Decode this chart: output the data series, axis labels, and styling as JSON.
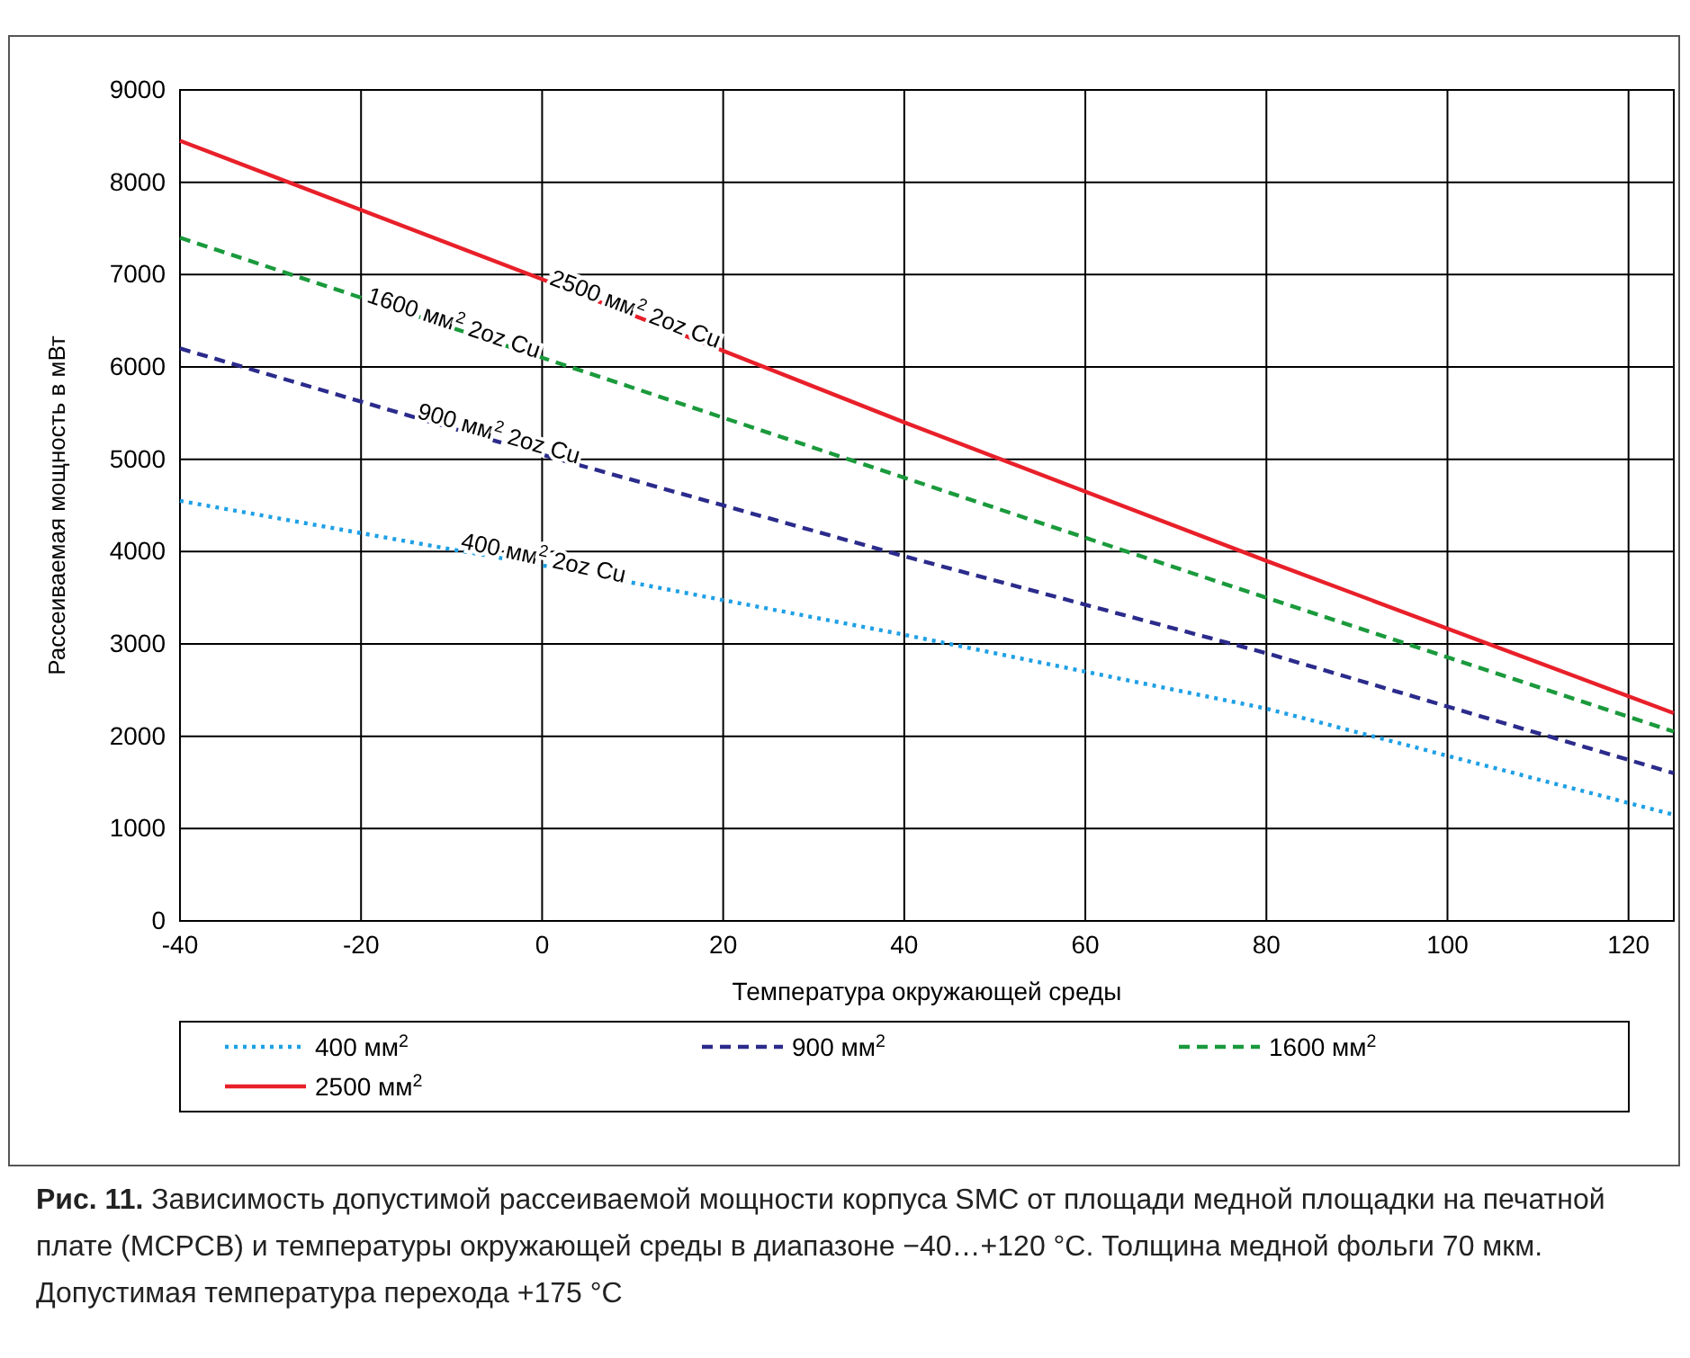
{
  "chart_data": {
    "type": "line",
    "xlabel": "Температура окружающей среды",
    "ylabel": "Рассеиваемая мощность в мВт",
    "x": [
      -40,
      0,
      40,
      80,
      125
    ],
    "series": [
      {
        "name": "400 мм$^{2}$",
        "color": "#1ea0e6",
        "values": [
          4550,
          3850,
          3100,
          2300,
          1150
        ],
        "line_style": "dotted"
      },
      {
        "name": "900 мм$^{2}$",
        "color": "#2b2b8c",
        "values": [
          6200,
          5050,
          3950,
          2900,
          1600
        ],
        "line_style": "dashed"
      },
      {
        "name": "1600 мм$^{2}$",
        "color": "#1a9a3c",
        "values": [
          7400,
          6100,
          4800,
          3500,
          2050
        ],
        "line_style": "dashed"
      },
      {
        "name": "2500 мм$^{2}$",
        "color": "#e8202a",
        "values": [
          8450,
          6950,
          5400,
          3900,
          2250
        ],
        "line_style": "solid"
      }
    ],
    "xlim": [
      -40,
      125
    ],
    "xticks": [
      -40,
      -20,
      0,
      20,
      40,
      60,
      80,
      100,
      120
    ],
    "ylim": [
      0,
      9000
    ],
    "yticks": [
      0,
      1000,
      2000,
      3000,
      4000,
      5000,
      6000,
      7000,
      8000,
      9000
    ],
    "grid": true,
    "legend": "bottom",
    "marker": "none",
    "annotations": [
      {
        "text": "400 мм$^{2}$ 2oz Cu",
        "x": 0,
        "y": 3850
      },
      {
        "text": "900 мм$^{2}$ 2oz Cu",
        "x": -5,
        "y": 5200
      },
      {
        "text": "1600 мм$^{2}$ 2oz Cu",
        "x": -10,
        "y": 6400
      },
      {
        "text": "2500 мм$^{2}$ 2oz Cu",
        "x": 10,
        "y": 6550
      },
      "Рис. 11. Зависимость допустимой рассеиваемой мощности корпуса SMC от площади медной площадки на печатной плате (MCPCB) и температуры окружающей среды в диапазоне −40…+120 °C. Толщина медной фольги 70 мкм. Допустимая температура перехода +175 °C"
    ]
  }
}
